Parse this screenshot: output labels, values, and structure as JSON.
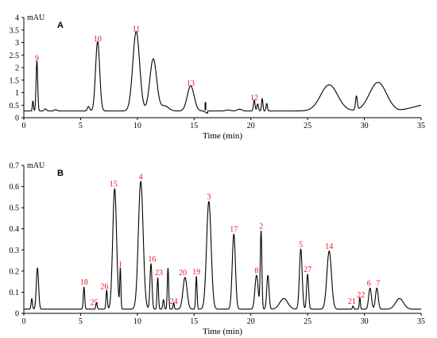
{
  "colors": {
    "trace": "#000000",
    "peak_label": "#e8141b",
    "axis": "#000000"
  },
  "chart_data": [
    {
      "type": "line",
      "panel": "A",
      "ylabel": "mAU",
      "xlabel": "Time (min)",
      "xlim": [
        0,
        35
      ],
      "ylim": [
        0,
        4
      ],
      "xticks": [
        0,
        5,
        10,
        15,
        20,
        25,
        30,
        35
      ],
      "yticks": [
        0,
        0.5,
        1,
        1.5,
        2,
        2.5,
        3,
        3.5,
        4
      ],
      "ytick_labels": [
        "0",
        "0.5",
        "1",
        "1.5",
        "2",
        "2.5",
        "3",
        "3.5",
        "4"
      ],
      "baseline": 0.27,
      "series": [
        {
          "peaks": [
            {
              "t": 0.8,
              "h": 0.4,
              "w": 0.05
            },
            {
              "t": 1.15,
              "h": 2.0,
              "w": 0.07
            },
            {
              "t": 1.9,
              "h": 0.08,
              "w": 0.1
            },
            {
              "t": 2.8,
              "h": 0.05,
              "w": 0.12
            },
            {
              "t": 5.7,
              "h": 0.18,
              "w": 0.1
            },
            {
              "t": 6.5,
              "h": 2.77,
              "w": 0.18
            },
            {
              "t": 9.9,
              "h": 3.17,
              "w": 0.3
            },
            {
              "t": 11.4,
              "h": 2.08,
              "w": 0.3
            },
            {
              "t": 12.4,
              "h": 0.2,
              "w": 0.35
            },
            {
              "t": 14.7,
              "h": 1.0,
              "w": 0.3
            },
            {
              "t": 18.0,
              "h": 0.04,
              "w": 0.2
            },
            {
              "t": 19.0,
              "h": 0.07,
              "w": 0.2
            },
            {
              "t": 20.3,
              "h": 0.43,
              "w": 0.07
            },
            {
              "t": 20.6,
              "h": 0.28,
              "w": 0.07
            },
            {
              "t": 21.0,
              "h": 0.5,
              "w": 0.06
            },
            {
              "t": 21.4,
              "h": 0.3,
              "w": 0.06
            },
            {
              "t": 26.9,
              "h": 1.04,
              "w": 0.75
            },
            {
              "t": 29.3,
              "h": 0.55,
              "w": 0.08
            },
            {
              "t": 31.2,
              "h": 1.14,
              "w": 0.75
            }
          ],
          "trends": [
            {
              "start": 15.8,
              "end": 16.2,
              "h": -0.1
            },
            {
              "start": 33.0,
              "end": 35.0,
              "h": 0.23
            }
          ],
          "spikes": [
            {
              "t": 16.0,
              "from": 0.3,
              "to": 0.62
            }
          ]
        }
      ],
      "peak_labels": [
        {
          "text": "9",
          "t": 1.15,
          "y": 2.27
        },
        {
          "text": "10",
          "t": 6.5,
          "y": 3.04
        },
        {
          "text": "11",
          "t": 9.9,
          "y": 3.44
        },
        {
          "text": "13",
          "t": 14.7,
          "y": 1.27
        },
        {
          "text": "12",
          "t": 20.3,
          "y": 0.7
        }
      ]
    },
    {
      "type": "line",
      "panel": "B",
      "ylabel": "mAU",
      "xlabel": "Time (min)",
      "xlim": [
        0,
        35
      ],
      "ylim": [
        0,
        0.7
      ],
      "xticks": [
        0,
        5,
        10,
        15,
        20,
        25,
        30,
        35
      ],
      "yticks": [
        0,
        0.1,
        0.2,
        0.3,
        0.4,
        0.5,
        0.6,
        0.7
      ],
      "ytick_labels": [
        "0",
        "0.1",
        "0.2",
        "0.3",
        "0.4",
        "0.5",
        "0.6",
        "0.7"
      ],
      "baseline": 0.02,
      "series": [
        {
          "peaks": [
            {
              "t": 0.7,
              "h": 0.05,
              "w": 0.06
            },
            {
              "t": 1.2,
              "h": 0.195,
              "w": 0.1
            },
            {
              "t": 5.3,
              "h": 0.105,
              "w": 0.06
            },
            {
              "t": 6.4,
              "h": 0.03,
              "w": 0.06
            },
            {
              "t": 7.3,
              "h": 0.09,
              "w": 0.06
            },
            {
              "t": 8.0,
              "h": 0.57,
              "w": 0.17
            },
            {
              "t": 8.5,
              "h": 0.19,
              "w": 0.05
            },
            {
              "t": 10.3,
              "h": 0.605,
              "w": 0.21
            },
            {
              "t": 11.2,
              "h": 0.215,
              "w": 0.09
            },
            {
              "t": 11.8,
              "h": 0.15,
              "w": 0.06
            },
            {
              "t": 12.3,
              "h": 0.045,
              "w": 0.06
            },
            {
              "t": 12.7,
              "h": 0.195,
              "w": 0.06
            },
            {
              "t": 13.2,
              "h": 0.03,
              "w": 0.05
            },
            {
              "t": 14.2,
              "h": 0.15,
              "w": 0.18
            },
            {
              "t": 15.2,
              "h": 0.155,
              "w": 0.06
            },
            {
              "t": 16.3,
              "h": 0.51,
              "w": 0.2
            },
            {
              "t": 18.5,
              "h": 0.355,
              "w": 0.14
            },
            {
              "t": 20.5,
              "h": 0.16,
              "w": 0.14
            },
            {
              "t": 20.9,
              "h": 0.37,
              "w": 0.07
            },
            {
              "t": 21.5,
              "h": 0.16,
              "w": 0.1
            },
            {
              "t": 22.9,
              "h": 0.05,
              "w": 0.35
            },
            {
              "t": 24.4,
              "h": 0.285,
              "w": 0.12
            },
            {
              "t": 25.0,
              "h": 0.165,
              "w": 0.09
            },
            {
              "t": 26.9,
              "h": 0.275,
              "w": 0.2
            },
            {
              "t": 29.0,
              "h": 0.015,
              "w": 0.05
            },
            {
              "t": 29.6,
              "h": 0.055,
              "w": 0.05
            },
            {
              "t": 30.5,
              "h": 0.1,
              "w": 0.12
            },
            {
              "t": 31.1,
              "h": 0.1,
              "w": 0.12
            },
            {
              "t": 33.1,
              "h": 0.05,
              "w": 0.35
            }
          ],
          "trends": [],
          "spikes": []
        }
      ],
      "peak_labels": [
        {
          "text": "18",
          "t": 5.3,
          "y": 0.135
        },
        {
          "text": "25",
          "t": 6.2,
          "y": 0.04
        },
        {
          "text": "26",
          "t": 7.1,
          "y": 0.115
        },
        {
          "text": "15",
          "t": 7.9,
          "y": 0.6
        },
        {
          "text": "1",
          "t": 8.5,
          "y": 0.22
        },
        {
          "text": "4",
          "t": 10.3,
          "y": 0.635
        },
        {
          "text": "16",
          "t": 11.3,
          "y": 0.245
        },
        {
          "text": "23",
          "t": 11.9,
          "y": 0.18
        },
        {
          "text": "24",
          "t": 13.2,
          "y": 0.045
        },
        {
          "text": "20",
          "t": 14.0,
          "y": 0.18
        },
        {
          "text": "19",
          "t": 15.2,
          "y": 0.185
        },
        {
          "text": "3",
          "t": 16.3,
          "y": 0.54
        },
        {
          "text": "17",
          "t": 18.5,
          "y": 0.385
        },
        {
          "text": "8",
          "t": 20.5,
          "y": 0.19
        },
        {
          "text": "2",
          "t": 20.9,
          "y": 0.4
        },
        {
          "text": "5",
          "t": 24.4,
          "y": 0.315
        },
        {
          "text": "27",
          "t": 25.0,
          "y": 0.195
        },
        {
          "text": "14",
          "t": 26.9,
          "y": 0.305
        },
        {
          "text": "21",
          "t": 28.9,
          "y": 0.045
        },
        {
          "text": "22",
          "t": 29.7,
          "y": 0.075
        },
        {
          "text": "6",
          "t": 30.4,
          "y": 0.13
        },
        {
          "text": "7",
          "t": 31.2,
          "y": 0.13
        }
      ]
    }
  ]
}
